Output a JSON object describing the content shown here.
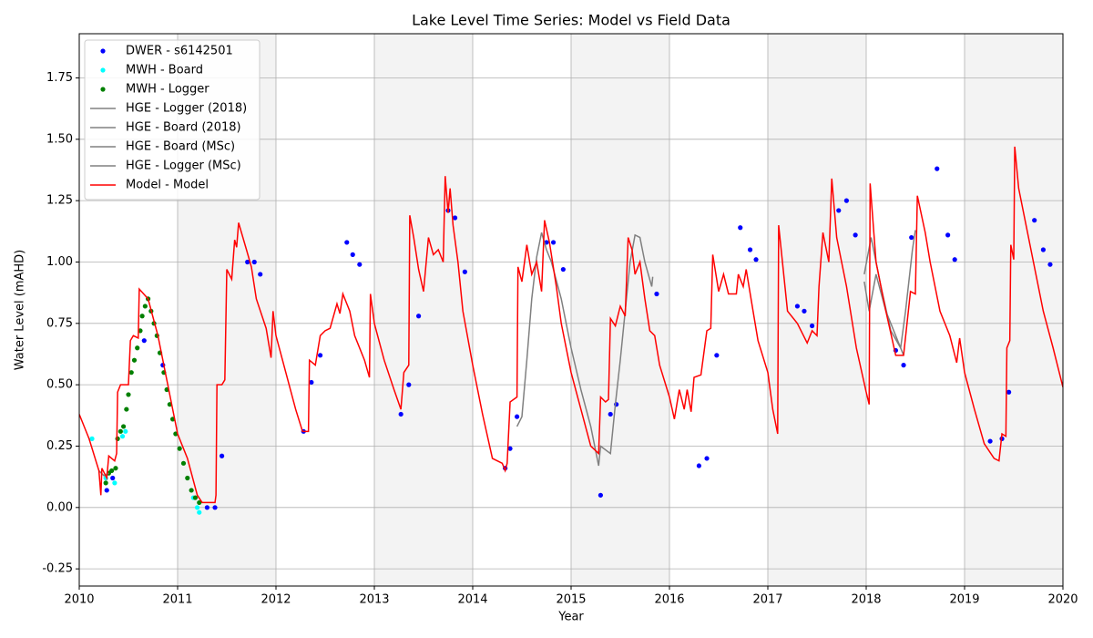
{
  "chart_data": {
    "type": "line",
    "title": "Lake Level Time Series: Model vs Field Data",
    "x_label": "Year",
    "y_label": "Water Level (mAHD)",
    "xlim": [
      2010,
      2020
    ],
    "xticks": [
      2010,
      2011,
      2012,
      2013,
      2014,
      2015,
      2016,
      2017,
      2018,
      2019,
      2020
    ],
    "ylim": [
      -0.32,
      1.93
    ],
    "yticks": [
      -0.25,
      {
        "value": 0,
        "label": "0.00"
      },
      0.25,
      {
        "value": 0.5,
        "label": "0.50"
      },
      0.75,
      {
        "value": 1,
        "label": "1.00"
      },
      1.25,
      {
        "value": 1.5,
        "label": "1.50"
      },
      1.75
    ],
    "grid": true,
    "legend": "upper left",
    "shaded_spans": [
      [
        2011,
        2012
      ],
      [
        2013,
        2014
      ],
      [
        2015,
        2016
      ],
      [
        2017,
        2018
      ],
      [
        2019,
        2020
      ]
    ],
    "series": [
      {
        "name": "DWER - s6142501",
        "style": "scatter",
        "color": "#0000ff",
        "x": [
          2010.28,
          2010.34,
          2010.66,
          2010.85,
          2011.3,
          2011.38,
          2011.45,
          2011.71,
          2011.78,
          2011.84,
          2012.28,
          2012.36,
          2012.45,
          2012.72,
          2012.78,
          2012.85,
          2013.27,
          2013.35,
          2013.45,
          2013.75,
          2013.82,
          2013.92,
          2014.33,
          2014.38,
          2014.45,
          2014.75,
          2014.82,
          2014.92,
          2015.3,
          2015.4,
          2015.46,
          2015.87,
          2016.3,
          2016.38,
          2016.48,
          2016.72,
          2016.82,
          2016.88,
          2017.3,
          2017.37,
          2017.45,
          2017.72,
          2017.8,
          2017.89,
          2018.3,
          2018.38,
          2018.46,
          2018.72,
          2018.83,
          2018.9,
          2019.26,
          2019.38,
          2019.45,
          2019.71,
          2019.8,
          2019.87
        ],
        "values": [
          0.07,
          0.12,
          0.68,
          0.58,
          0.0,
          0.0,
          0.21,
          1.0,
          1.0,
          0.95,
          0.31,
          0.51,
          0.62,
          1.08,
          1.03,
          0.99,
          0.38,
          0.5,
          0.78,
          1.21,
          1.18,
          0.96,
          0.16,
          0.24,
          0.37,
          1.08,
          1.08,
          0.97,
          0.05,
          0.38,
          0.42,
          0.87,
          0.17,
          0.2,
          0.62,
          1.14,
          1.05,
          1.01,
          0.82,
          0.8,
          0.74,
          1.21,
          1.25,
          1.11,
          0.64,
          0.58,
          1.1,
          1.38,
          1.11,
          1.01,
          0.27,
          0.28,
          0.47,
          1.17,
          1.05,
          0.99
        ]
      },
      {
        "name": "MWH - Board",
        "style": "scatter",
        "color": "#00ffff",
        "x": [
          2010.13,
          2010.27,
          2010.36,
          2010.44,
          2010.47,
          2011.16,
          2011.2,
          2011.22
        ],
        "values": [
          0.28,
          0.12,
          0.1,
          0.29,
          0.31,
          0.04,
          0.0,
          -0.02
        ]
      },
      {
        "name": "MWH - Logger",
        "style": "scatter",
        "color": "#008000",
        "x": [
          2010.27,
          2010.3,
          2010.33,
          2010.37,
          2010.39,
          2010.42,
          2010.45,
          2010.48,
          2010.5,
          2010.53,
          2010.56,
          2010.59,
          2010.62,
          2010.64,
          2010.67,
          2010.7,
          2010.73,
          2010.76,
          2010.79,
          2010.82,
          2010.86,
          2010.89,
          2010.92,
          2010.95,
          2010.98,
          2011.02,
          2011.06,
          2011.1,
          2011.14,
          2011.18,
          2011.22
        ],
        "values": [
          0.1,
          0.14,
          0.15,
          0.16,
          0.28,
          0.31,
          0.33,
          0.4,
          0.46,
          0.55,
          0.6,
          0.65,
          0.72,
          0.78,
          0.82,
          0.85,
          0.8,
          0.75,
          0.7,
          0.63,
          0.55,
          0.48,
          0.42,
          0.36,
          0.3,
          0.24,
          0.18,
          0.12,
          0.07,
          0.04,
          0.02
        ]
      },
      {
        "name": "HGE - Logger (2018)",
        "style": "line",
        "color": "#808080",
        "x": [
          2014.45,
          2014.5,
          2014.55,
          2014.6,
          2014.65,
          2014.7,
          2014.75,
          2014.8,
          2014.9,
          2015.0,
          2015.1,
          2015.2,
          2015.28,
          2015.3,
          2015.4,
          2015.45,
          2015.5,
          2015.55,
          2015.6,
          2015.65,
          2015.7,
          2015.75,
          2015.82,
          2015.83
        ],
        "values": [
          0.33,
          0.37,
          0.6,
          0.85,
          1.02,
          1.12,
          1.05,
          1.0,
          0.85,
          0.65,
          0.48,
          0.33,
          0.17,
          0.25,
          0.22,
          0.42,
          0.6,
          0.8,
          1.0,
          1.11,
          1.1,
          1.0,
          0.9,
          0.94
        ]
      },
      {
        "name": "HGE - Board (2018)",
        "style": "line",
        "color": "#808080",
        "x": [
          2010.2,
          2010.25,
          2010.3
        ],
        "values": [
          0.15,
          0.13,
          0.14
        ]
      },
      {
        "name": "HGE - Board (MSc)",
        "style": "line",
        "color": "#808080",
        "x": [
          2017.98,
          2018.05,
          2018.15,
          2018.25,
          2018.35,
          2018.4,
          2018.47,
          2018.5
        ],
        "values": [
          0.95,
          1.1,
          0.9,
          0.72,
          0.65,
          0.8,
          1.05,
          1.13
        ]
      },
      {
        "name": "HGE - Logger (MSc)",
        "style": "line",
        "color": "#808080",
        "x": [
          2017.98,
          2018.03,
          2018.1,
          2018.2,
          2018.3,
          2018.38
        ],
        "values": [
          0.92,
          0.8,
          0.95,
          0.8,
          0.7,
          0.62
        ]
      },
      {
        "name": "Model - Model",
        "style": "line",
        "color": "#ff0000",
        "x": [
          2010.0,
          2010.1,
          2010.2,
          2010.21,
          2010.22,
          2010.23,
          2010.28,
          2010.3,
          2010.36,
          2010.38,
          2010.39,
          2010.42,
          2010.5,
          2010.52,
          2010.55,
          2010.6,
          2010.61,
          2010.7,
          2010.8,
          2010.9,
          2011.0,
          2011.1,
          2011.2,
          2011.25,
          2011.38,
          2011.39,
          2011.4,
          2011.45,
          2011.48,
          2011.5,
          2011.55,
          2011.58,
          2011.6,
          2011.62,
          2011.7,
          2011.75,
          2011.8,
          2011.9,
          2011.95,
          2011.97,
          2012.0,
          2012.1,
          2012.2,
          2012.27,
          2012.33,
          2012.34,
          2012.4,
          2012.45,
          2012.5,
          2012.55,
          2012.62,
          2012.65,
          2012.68,
          2012.75,
          2012.8,
          2012.9,
          2012.95,
          2012.96,
          2013.0,
          2013.1,
          2013.2,
          2013.27,
          2013.3,
          2013.35,
          2013.36,
          2013.4,
          2013.45,
          2013.5,
          2013.55,
          2013.6,
          2013.65,
          2013.7,
          2013.72,
          2013.75,
          2013.77,
          2013.8,
          2013.85,
          2013.9,
          2014.0,
          2014.1,
          2014.2,
          2014.3,
          2014.33,
          2014.35,
          2014.38,
          2014.45,
          2014.46,
          2014.5,
          2014.55,
          2014.6,
          2014.65,
          2014.7,
          2014.73,
          2014.78,
          2014.85,
          2014.9,
          2015.0,
          2015.1,
          2015.2,
          2015.28,
          2015.3,
          2015.35,
          2015.38,
          2015.4,
          2015.45,
          2015.5,
          2015.55,
          2015.58,
          2015.62,
          2015.65,
          2015.7,
          2015.75,
          2015.8,
          2015.85,
          2015.9,
          2016.0,
          2016.05,
          2016.1,
          2016.15,
          2016.18,
          2016.22,
          2016.25,
          2016.32,
          2016.38,
          2016.42,
          2016.44,
          2016.5,
          2016.55,
          2016.6,
          2016.68,
          2016.7,
          2016.75,
          2016.78,
          2016.85,
          2016.9,
          2017.0,
          2017.05,
          2017.1,
          2017.11,
          2017.2,
          2017.3,
          2017.4,
          2017.45,
          2017.5,
          2017.52,
          2017.56,
          2017.62,
          2017.65,
          2017.7,
          2017.75,
          2017.8,
          2017.9,
          2018.0,
          2018.03,
          2018.04,
          2018.1,
          2018.2,
          2018.3,
          2018.38,
          2018.45,
          2018.5,
          2018.52,
          2018.6,
          2018.65,
          2018.75,
          2018.85,
          2018.92,
          2018.95,
          2019.0,
          2019.1,
          2019.2,
          2019.3,
          2019.35,
          2019.38,
          2019.42,
          2019.43,
          2019.46,
          2019.47,
          2019.5,
          2019.51,
          2019.55,
          2019.6,
          2019.7,
          2019.8,
          2019.9,
          2020.0
        ],
        "values": [
          0.38,
          0.28,
          0.15,
          0.1,
          0.05,
          0.16,
          0.12,
          0.21,
          0.19,
          0.22,
          0.47,
          0.5,
          0.5,
          0.68,
          0.7,
          0.69,
          0.89,
          0.85,
          0.7,
          0.5,
          0.3,
          0.2,
          0.05,
          0.02,
          0.02,
          0.05,
          0.5,
          0.5,
          0.52,
          0.97,
          0.93,
          1.09,
          1.06,
          1.16,
          1.05,
          0.98,
          0.85,
          0.73,
          0.61,
          0.8,
          0.7,
          0.55,
          0.4,
          0.31,
          0.31,
          0.6,
          0.58,
          0.7,
          0.72,
          0.73,
          0.83,
          0.79,
          0.87,
          0.8,
          0.7,
          0.6,
          0.53,
          0.87,
          0.75,
          0.6,
          0.48,
          0.4,
          0.55,
          0.58,
          1.19,
          1.1,
          0.97,
          0.88,
          1.1,
          1.03,
          1.05,
          1.0,
          1.35,
          1.2,
          1.3,
          1.15,
          1.0,
          0.8,
          0.58,
          0.38,
          0.2,
          0.18,
          0.15,
          0.18,
          0.43,
          0.45,
          0.98,
          0.92,
          1.07,
          0.95,
          1.0,
          0.88,
          1.17,
          1.08,
          0.9,
          0.75,
          0.55,
          0.4,
          0.25,
          0.22,
          0.45,
          0.43,
          0.44,
          0.77,
          0.74,
          0.82,
          0.78,
          1.1,
          1.05,
          0.95,
          1.0,
          0.85,
          0.72,
          0.7,
          0.58,
          0.45,
          0.36,
          0.48,
          0.4,
          0.48,
          0.39,
          0.53,
          0.54,
          0.72,
          0.73,
          1.03,
          0.88,
          0.95,
          0.87,
          0.87,
          0.95,
          0.9,
          0.97,
          0.8,
          0.68,
          0.55,
          0.4,
          0.3,
          1.15,
          0.8,
          0.75,
          0.67,
          0.72,
          0.7,
          0.9,
          1.12,
          1.0,
          1.34,
          1.1,
          1.0,
          0.9,
          0.65,
          0.47,
          0.42,
          1.32,
          1.0,
          0.8,
          0.62,
          0.62,
          0.88,
          0.87,
          1.27,
          1.12,
          1.0,
          0.8,
          0.7,
          0.59,
          0.69,
          0.55,
          0.4,
          0.26,
          0.2,
          0.19,
          0.3,
          0.29,
          0.65,
          0.68,
          1.07,
          1.01,
          1.47,
          1.3,
          1.2,
          1.0,
          0.8,
          0.65,
          0.49
        ]
      }
    ]
  }
}
